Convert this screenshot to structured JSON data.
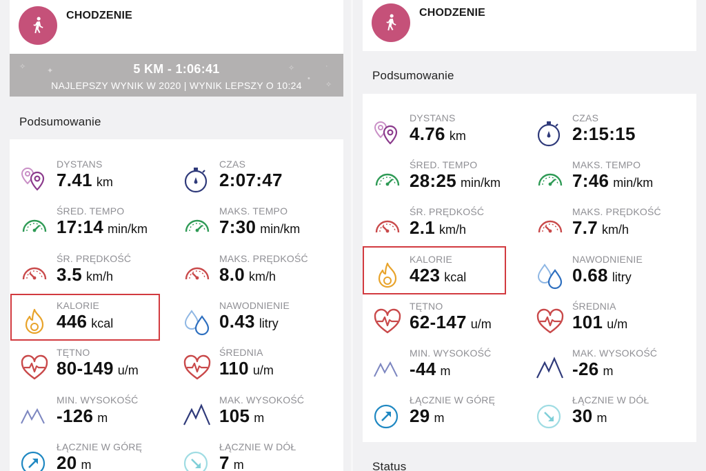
{
  "left": {
    "activity": {
      "title": "CHODZENIE",
      "icon": "walking-person-icon"
    },
    "banner": {
      "title": "5 KM - 1:06:41",
      "subtitle": "NAJLEPSZY WYNIK W 2020  |  WYNIK LEPSZY O 10:24"
    },
    "summary_title": "Podsumowanie",
    "metrics": [
      {
        "label": "DYSTANS",
        "value": "7.41",
        "unit": "km",
        "icon": "location-pins-icon"
      },
      {
        "label": "CZAS",
        "value": "2:07:47",
        "unit": "",
        "icon": "stopwatch-icon"
      },
      {
        "label": "ŚRED. TEMPO",
        "value": "17:14",
        "unit": "min/km",
        "icon": "gauge-green-icon"
      },
      {
        "label": "MAKS. TEMPO",
        "value": "7:30",
        "unit": "min/km",
        "icon": "gauge-green-icon"
      },
      {
        "label": "ŚR. PRĘDKOŚĆ",
        "value": "3.5",
        "unit": "km/h",
        "icon": "gauge-red-icon"
      },
      {
        "label": "MAKS. PRĘDKOŚĆ",
        "value": "8.0",
        "unit": "km/h",
        "icon": "gauge-red-icon"
      },
      {
        "label": "KALORIE",
        "value": "446",
        "unit": "kcal",
        "icon": "flame-icon"
      },
      {
        "label": "NAWODNIENIE",
        "value": "0.43",
        "unit": "litry",
        "icon": "water-drops-icon"
      },
      {
        "label": "TĘTNO",
        "value": "80-149",
        "unit": "u/m",
        "icon": "heart-pulse-icon"
      },
      {
        "label": "ŚREDNIA",
        "value": "110",
        "unit": "u/m",
        "icon": "heart-pulse-icon"
      },
      {
        "label": "MIN. WYSOKOŚĆ",
        "value": "-126",
        "unit": "m",
        "icon": "mountain-light-icon"
      },
      {
        "label": "MAK. WYSOKOŚĆ",
        "value": "105",
        "unit": "m",
        "icon": "mountain-dark-icon"
      },
      {
        "label": "ŁĄCZNIE W GÓRĘ",
        "value": "20",
        "unit": "m",
        "icon": "arrow-up-circle-icon"
      },
      {
        "label": "ŁĄCZNIE W DÓŁ",
        "value": "7",
        "unit": "m",
        "icon": "arrow-down-circle-icon"
      }
    ]
  },
  "right": {
    "activity": {
      "title": "CHODZENIE",
      "icon": "walking-person-icon"
    },
    "summary_title": "Podsumowanie",
    "status_title": "Status",
    "metrics": [
      {
        "label": "DYSTANS",
        "value": "4.76",
        "unit": "km",
        "icon": "location-pins-icon"
      },
      {
        "label": "CZAS",
        "value": "2:15:15",
        "unit": "",
        "icon": "stopwatch-icon"
      },
      {
        "label": "ŚRED. TEMPO",
        "value": "28:25",
        "unit": "min/km",
        "icon": "gauge-green-icon"
      },
      {
        "label": "MAKS. TEMPO",
        "value": "7:46",
        "unit": "min/km",
        "icon": "gauge-green-icon"
      },
      {
        "label": "ŚR. PRĘDKOŚĆ",
        "value": "2.1",
        "unit": "km/h",
        "icon": "gauge-red-icon"
      },
      {
        "label": "MAKS. PRĘDKOŚĆ",
        "value": "7.7",
        "unit": "km/h",
        "icon": "gauge-red-icon"
      },
      {
        "label": "KALORIE",
        "value": "423",
        "unit": "kcal",
        "icon": "flame-icon"
      },
      {
        "label": "NAWODNIENIE",
        "value": "0.68",
        "unit": "litry",
        "icon": "water-drops-icon"
      },
      {
        "label": "TĘTNO",
        "value": "62-147",
        "unit": "u/m",
        "icon": "heart-pulse-icon"
      },
      {
        "label": "ŚREDNIA",
        "value": "101",
        "unit": "u/m",
        "icon": "heart-pulse-icon"
      },
      {
        "label": "MIN. WYSOKOŚĆ",
        "value": "-44",
        "unit": "m",
        "icon": "mountain-light-icon"
      },
      {
        "label": "MAK. WYSOKOŚĆ",
        "value": "-26",
        "unit": "m",
        "icon": "mountain-dark-icon"
      },
      {
        "label": "ŁĄCZNIE W GÓRĘ",
        "value": "29",
        "unit": "m",
        "icon": "arrow-up-circle-icon"
      },
      {
        "label": "ŁĄCZNIE W DÓŁ",
        "value": "30",
        "unit": "m",
        "icon": "arrow-down-circle-icon"
      }
    ]
  },
  "colors": {
    "activity_badge": "#c55179",
    "banner": "#b3b1b1",
    "highlight": "#d23a3f",
    "label_gray": "#8f8f94"
  }
}
